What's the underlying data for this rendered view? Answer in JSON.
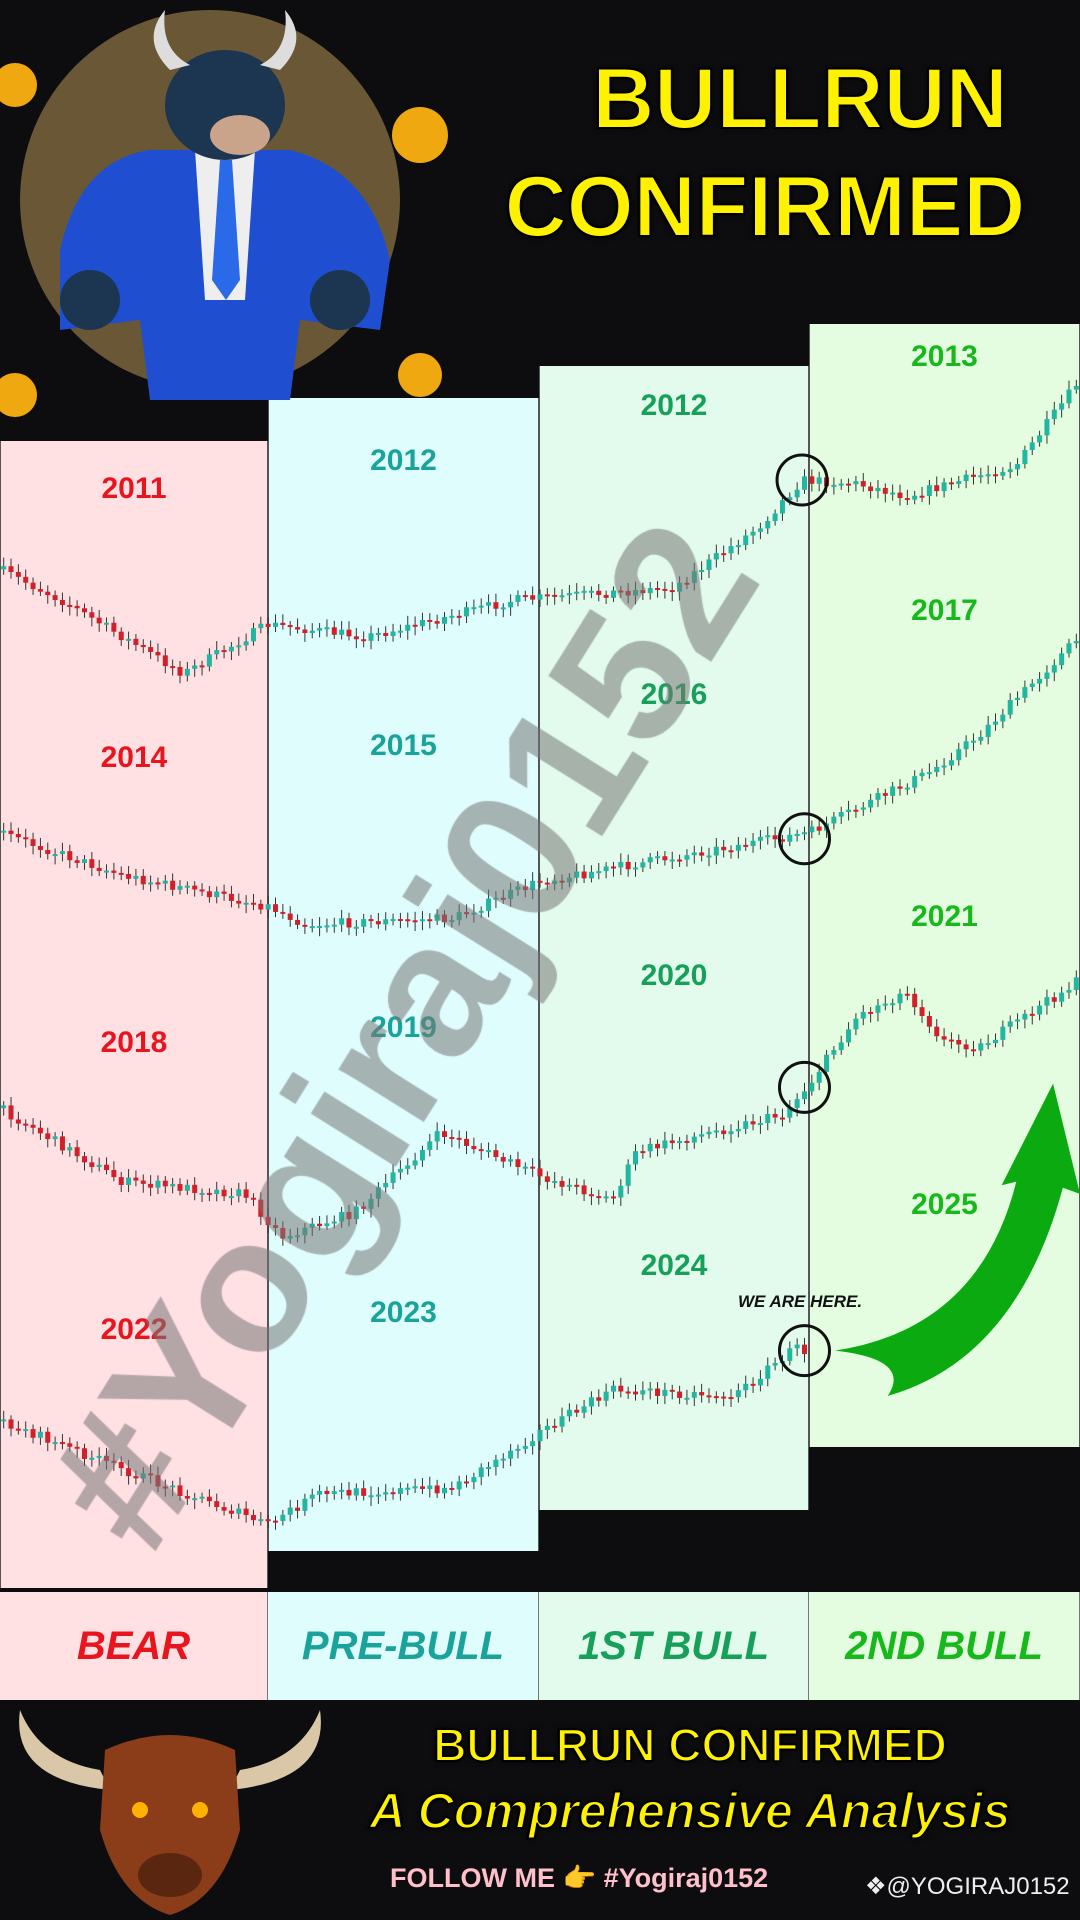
{
  "header": {
    "title_line1": "BULLRUN",
    "title_line2": "CONFIRMED"
  },
  "columns": [
    {
      "phase": "BEAR",
      "color": "#e8141e",
      "bg": "#ffe0e3",
      "years": [
        "2011",
        "2014",
        "2018",
        "2022"
      ]
    },
    {
      "phase": "PRE-BULL",
      "color": "#1aa39a",
      "bg": "#e0fdfd",
      "years": [
        "2012",
        "2015",
        "2019",
        "2023"
      ]
    },
    {
      "phase": "1ST BULL",
      "color": "#17a05a",
      "bg": "#e2fbec",
      "years": [
        "2012",
        "2016",
        "2020",
        "2024"
      ]
    },
    {
      "phase": "2ND BULL",
      "color": "#16b81c",
      "bg": "#e4fde0",
      "years": [
        "2013",
        "2017",
        "2021",
        "2025"
      ]
    }
  ],
  "annotation": "WE ARE HERE.",
  "watermark": "#Yogiraj0152",
  "footer": {
    "line1": "BULLRUN CONFIRMED",
    "line2": "A Comprehensive Analysis",
    "follow": "FOLLOW ME 👉 #Yogiraj0152",
    "handle": "@YOGIRAJ0152"
  },
  "colors": {
    "candle_up": "#22b5a0",
    "candle_down": "#d2202a",
    "arrow": "#0aaa10",
    "title": "#fff200",
    "follow": "#ffc0cb"
  }
}
